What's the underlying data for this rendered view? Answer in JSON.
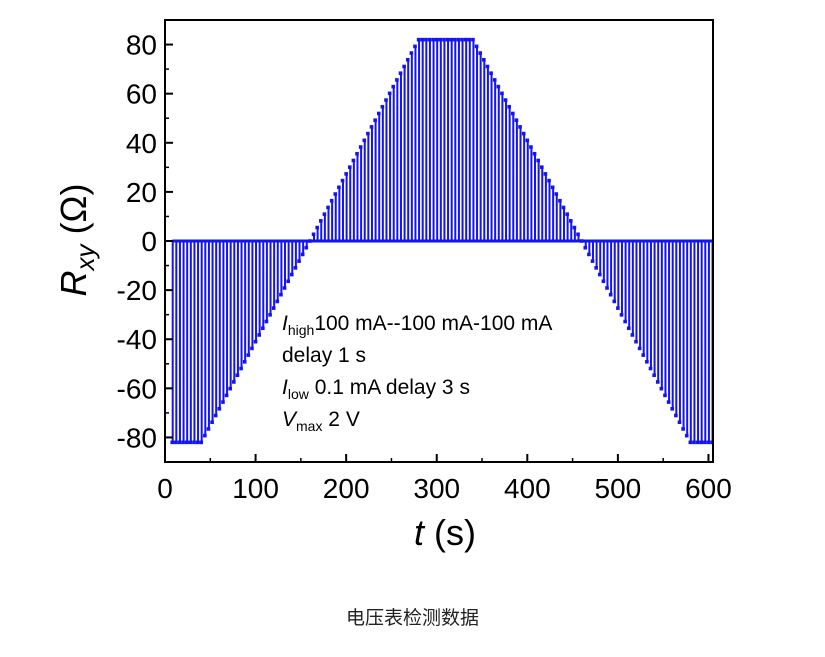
{
  "chart_data": {
    "type": "line",
    "xlabel_italic": "t",
    "xlabel_unit": " (s)",
    "ylabel_main": "R",
    "ylabel_sub": "xy",
    "ylabel_unit": " (Ω)",
    "xlim": [
      0,
      605
    ],
    "ylim": [
      -90,
      90
    ],
    "x_ticks": [
      0,
      100,
      200,
      300,
      400,
      500,
      600
    ],
    "y_ticks": [
      80,
      60,
      40,
      20,
      0,
      -20,
      -40,
      -60,
      -80
    ],
    "x_tick_labels": [
      "0",
      "100",
      "200",
      "300",
      "400",
      "500",
      "600"
    ],
    "y_tick_labels": [
      "80",
      "60",
      "40",
      "20",
      "0",
      "-20",
      "-40",
      "-60",
      "-80"
    ],
    "line_color": "#1414f0",
    "series_description": "pulsed signal alternating between 0 and an envelope value every sample",
    "envelope": {
      "x": [
        8,
        40,
        160,
        280,
        340,
        460,
        580,
        608
      ],
      "y": [
        -82,
        -82,
        0,
        82,
        82,
        0,
        -82,
        -82
      ]
    },
    "baseline_y": 0,
    "pulse_period_s": 4,
    "annotation": {
      "line1_I": "I",
      "line1_sub": "high",
      "line1_rest": "100 mA--100 mA-100 mA",
      "line2": "delay 1 s",
      "line3_I": "I",
      "line3_sub": "low",
      "line3_rest": " 0.1 mA delay 3 s",
      "line4_V": "V",
      "line4_sub": "max",
      "line4_rest": " 2 V"
    }
  },
  "caption": "电压表检测数据"
}
